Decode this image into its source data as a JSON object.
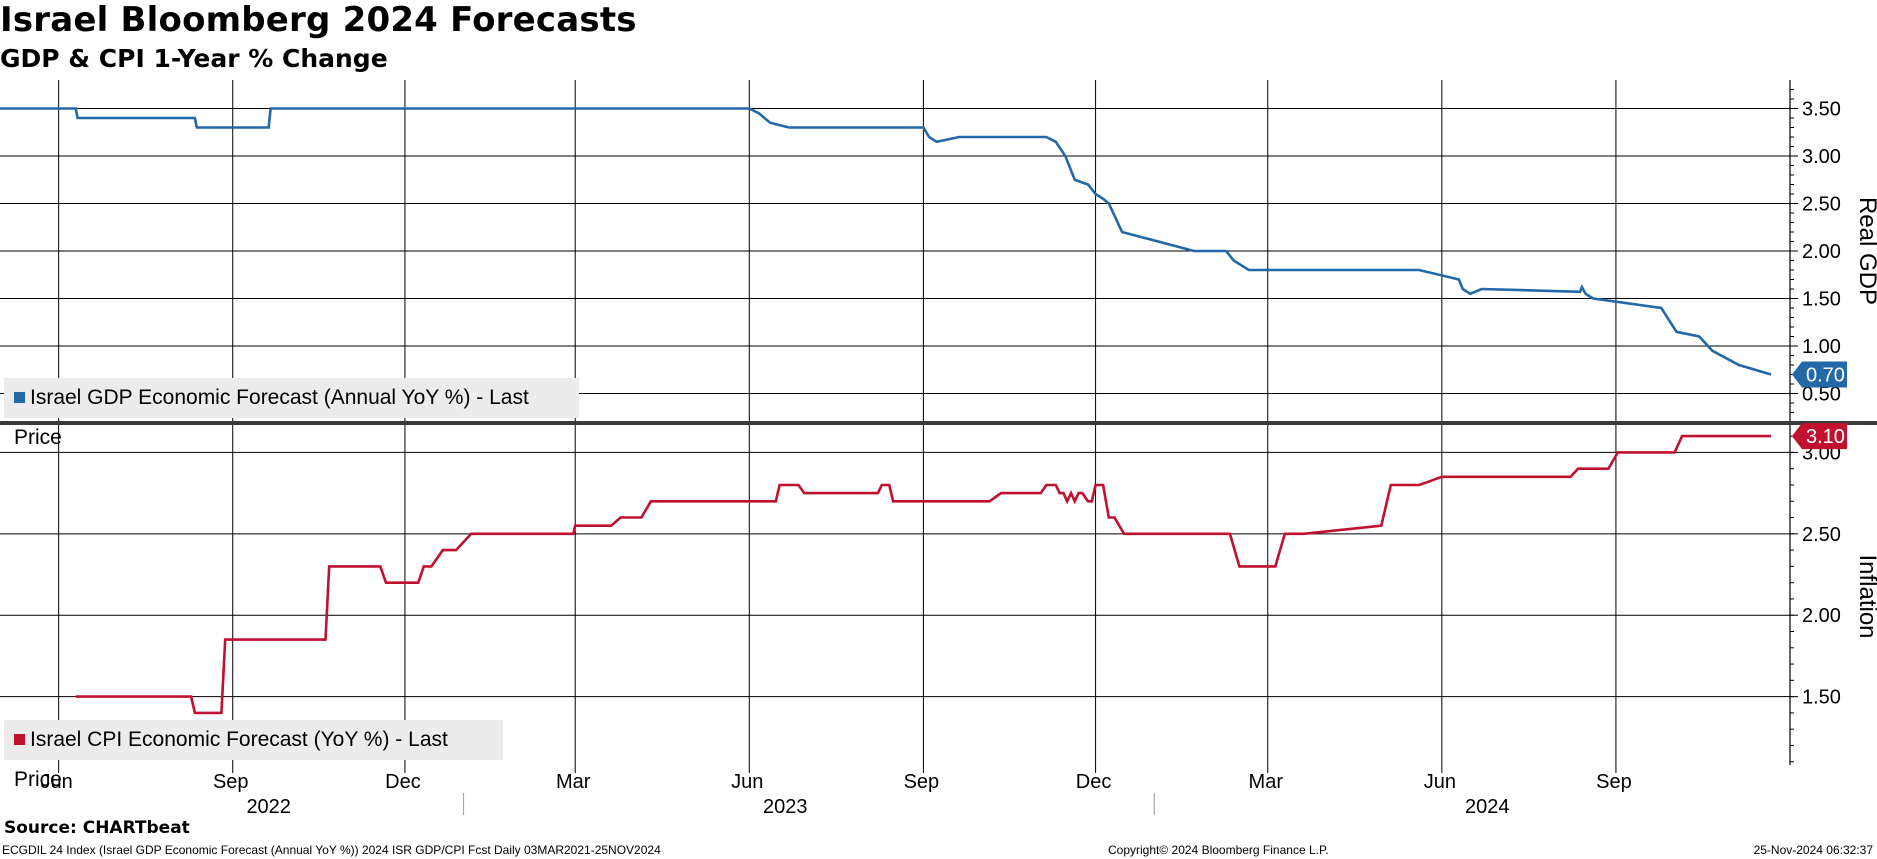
{
  "title": "Israel Bloomberg 2024 Forecasts",
  "subtitle": "GDP & CPI 1-Year % Change",
  "source": "Source: CHARTbeat",
  "footer": {
    "left": "ECGDIL 24 Index (Israel GDP Economic Forecast (Annual YoY %)) 2024 ISR GDP/CPI Fcst  Daily 03MAR2021-25NOV2024",
    "center": "Copyright© 2024 Bloomberg Finance L.P.",
    "right": "25-Nov-2024 06:32:37"
  },
  "colors": {
    "gdp": "#2369a8",
    "cpi": "#c0112f",
    "legend_bg": "#ececec"
  },
  "chart_data": [
    {
      "type": "line",
      "name": "gdp-panel",
      "ylabel": "Real GDP",
      "ylim": [
        0.2,
        3.8
      ],
      "yticks": [
        0.5,
        1.0,
        1.5,
        2.0,
        2.5,
        3.0,
        3.5
      ],
      "ytick_labels": [
        "0.50",
        "1.00",
        "1.50",
        "2.00",
        "2.50",
        "3.00",
        "3.50"
      ],
      "last_value_label": "0.70",
      "legend": "Israel GDP Economic Forecast (Annual YoY %) - Last Price",
      "series": [
        {
          "name": "Israel GDP Economic Forecast (Annual YoY %) - Last Price",
          "x": [
            "2022-05-01",
            "2022-06-10",
            "2022-06-11",
            "2022-08-12",
            "2022-08-13",
            "2022-09-20",
            "2022-09-21",
            "2023-06-01",
            "2023-06-06",
            "2023-06-12",
            "2023-06-22",
            "2023-09-01",
            "2023-09-04",
            "2023-09-08",
            "2023-09-20",
            "2023-11-05",
            "2023-11-10",
            "2023-11-15",
            "2023-11-20",
            "2023-11-27",
            "2023-12-01",
            "2023-12-05",
            "2023-12-08",
            "2023-12-15",
            "2024-01-22",
            "2024-02-08",
            "2024-02-12",
            "2024-02-20",
            "2024-05-20",
            "2024-06-10",
            "2024-06-12",
            "2024-06-16",
            "2024-06-22",
            "2024-08-13",
            "2024-08-14",
            "2024-08-16",
            "2024-08-20",
            "2024-09-25",
            "2024-10-03",
            "2024-10-15",
            "2024-10-22",
            "2024-11-05",
            "2024-11-22"
          ],
          "values": [
            3.5,
            3.5,
            3.4,
            3.4,
            3.3,
            3.3,
            3.5,
            3.5,
            3.45,
            3.35,
            3.3,
            3.3,
            3.2,
            3.15,
            3.2,
            3.2,
            3.15,
            3.0,
            2.75,
            2.7,
            2.6,
            2.55,
            2.5,
            2.2,
            2.0,
            2.0,
            1.9,
            1.8,
            1.8,
            1.7,
            1.6,
            1.55,
            1.6,
            1.57,
            1.62,
            1.55,
            1.5,
            1.4,
            1.15,
            1.1,
            0.95,
            0.8,
            0.7
          ]
        }
      ]
    },
    {
      "type": "line",
      "name": "cpi-panel",
      "ylabel": "Inflation",
      "ylim": [
        1.08,
        3.15
      ],
      "yticks": [
        1.5,
        2.0,
        2.5,
        3.0
      ],
      "ytick_labels": [
        "1.50",
        "2.00",
        "2.50",
        "3.00"
      ],
      "last_value_label": "3.10",
      "legend": "Israel CPI Economic Forecast (YoY %) - Last Price",
      "x_tick_labels": [
        "Jun",
        "Sep",
        "Dec",
        "Mar",
        "Jun",
        "Sep",
        "Dec",
        "Mar",
        "Jun",
        "Sep"
      ],
      "x_tick_dates": [
        "2022-06-01",
        "2022-09-01",
        "2022-12-01",
        "2023-03-01",
        "2023-06-01",
        "2023-09-01",
        "2023-12-01",
        "2024-03-01",
        "2024-06-01",
        "2024-09-01"
      ],
      "year_labels": [
        "2022",
        "2023",
        "2024"
      ],
      "series": [
        {
          "name": "Israel CPI Economic Forecast (YoY %) - Last Price",
          "x": [
            "2022-06-10",
            "2022-08-10",
            "2022-08-12",
            "2022-08-26",
            "2022-08-28",
            "2022-10-20",
            "2022-10-22",
            "2022-11-18",
            "2022-11-21",
            "2022-12-08",
            "2022-12-11",
            "2022-12-15",
            "2022-12-21",
            "2022-12-28",
            "2023-01-05",
            "2023-02-28",
            "2023-03-01",
            "2023-03-20",
            "2023-03-25",
            "2023-04-05",
            "2023-04-10",
            "2023-06-15",
            "2023-06-17",
            "2023-06-27",
            "2023-06-30",
            "2023-08-08",
            "2023-08-10",
            "2023-08-14",
            "2023-08-16",
            "2023-10-06",
            "2023-10-12",
            "2023-11-02",
            "2023-11-05",
            "2023-11-10",
            "2023-11-12",
            "2023-11-14",
            "2023-11-16",
            "2023-11-18",
            "2023-11-20",
            "2023-11-22",
            "2023-11-24",
            "2023-11-27",
            "2023-11-29",
            "2023-12-01",
            "2023-12-05",
            "2023-12-08",
            "2023-12-11",
            "2023-12-16",
            "2024-02-10",
            "2024-02-15",
            "2024-03-05",
            "2024-03-10",
            "2024-03-20",
            "2024-04-30",
            "2024-05-05",
            "2024-05-20",
            "2024-05-25",
            "2024-06-01",
            "2024-08-08",
            "2024-08-12",
            "2024-08-28",
            "2024-09-02",
            "2024-10-02",
            "2024-10-06",
            "2024-10-28",
            "2024-11-01",
            "2024-11-22"
          ],
          "values": [
            1.5,
            1.5,
            1.4,
            1.4,
            1.85,
            1.85,
            2.3,
            2.3,
            2.2,
            2.2,
            2.3,
            2.3,
            2.4,
            2.4,
            2.5,
            2.5,
            2.55,
            2.55,
            2.6,
            2.6,
            2.7,
            2.7,
            2.8,
            2.8,
            2.75,
            2.75,
            2.8,
            2.8,
            2.7,
            2.7,
            2.75,
            2.75,
            2.8,
            2.8,
            2.75,
            2.75,
            2.7,
            2.75,
            2.7,
            2.75,
            2.75,
            2.7,
            2.7,
            2.8,
            2.8,
            2.6,
            2.6,
            2.5,
            2.5,
            2.3,
            2.3,
            2.5,
            2.5,
            2.55,
            2.8,
            2.8,
            2.82,
            2.85,
            2.85,
            2.9,
            2.9,
            3.0,
            3.0,
            3.1,
            3.1,
            3.1,
            3.1
          ]
        }
      ]
    }
  ]
}
